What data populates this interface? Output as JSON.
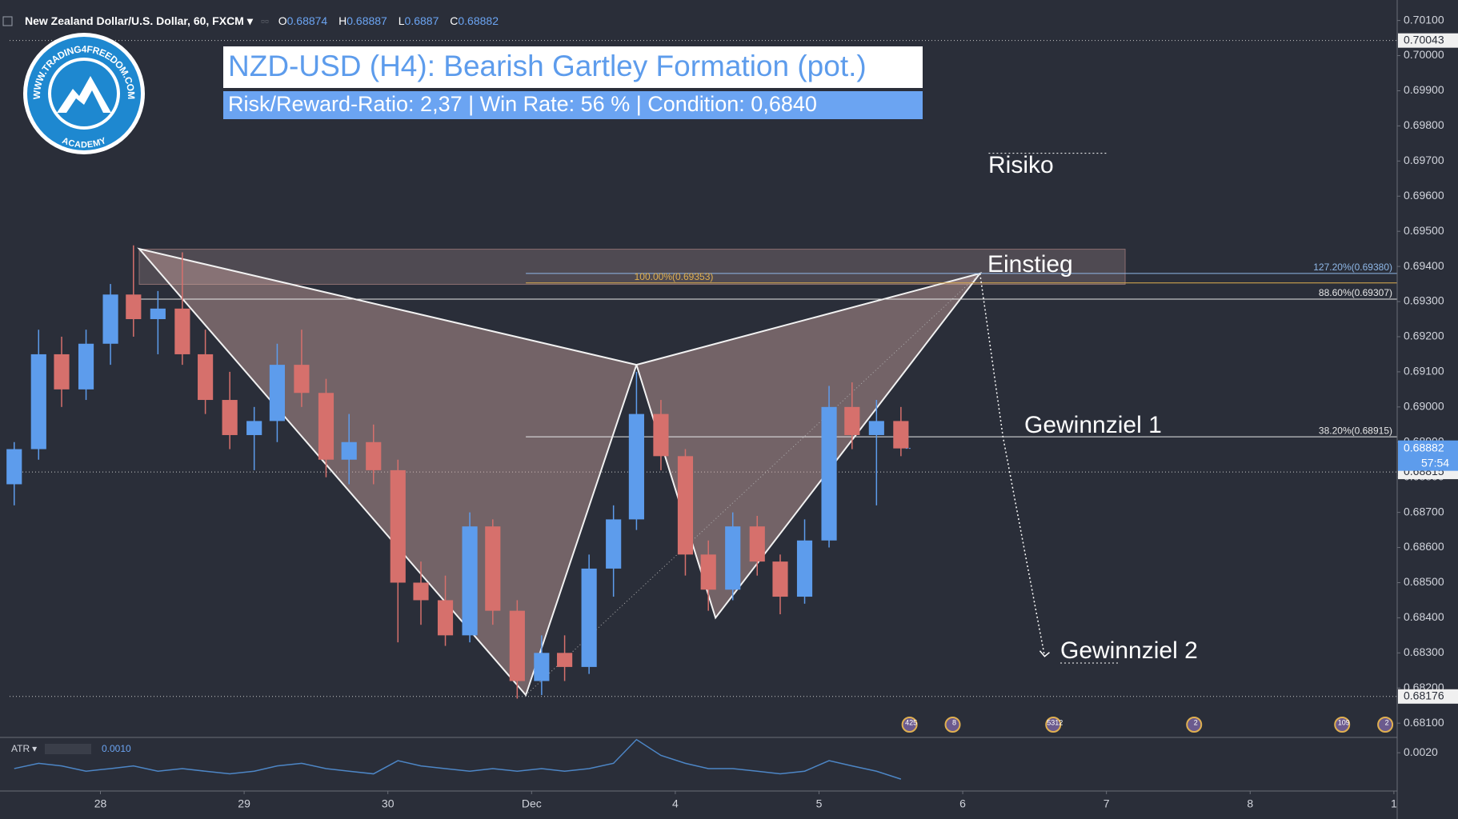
{
  "header": {
    "symbol": "New Zealand Dollar/U.S. Dollar, 60, FXCM",
    "ohlc": [
      {
        "key": "O",
        "value": 0.68874
      },
      {
        "key": "H",
        "value": 0.68887
      },
      {
        "key": "L",
        "value": 0.6887
      },
      {
        "key": "C",
        "value": 0.68882
      }
    ]
  },
  "banner": {
    "title": "NZD-USD (H4): Bearish Gartley Formation (pot.)",
    "subtitle": "Risk/Reward-Ratio: 2,37 | Win Rate: 56 % | Condition: 0,6840"
  },
  "logo": {
    "url": "WWW.TRADING4FREEDOM.COM",
    "tag": "ACADEMY"
  },
  "annotations": {
    "risk": "Risiko",
    "entry": "Einstieg",
    "target1": "Gewinnziel 1",
    "target2": "Gewinnziel 2"
  },
  "chart_data": [
    {
      "type": "candlestick",
      "up_color": "#5d9cec",
      "down_color": "#d6706c",
      "x": [
        -0.6,
        -0.43,
        -0.27,
        -0.1,
        0.07,
        0.23,
        0.4,
        0.57,
        0.73,
        0.9,
        1.07,
        1.23,
        1.4,
        1.57,
        1.73,
        1.9,
        2.07,
        2.23,
        2.4,
        2.57,
        2.73,
        2.9,
        3.07,
        3.23,
        3.4,
        3.57,
        3.73,
        3.9,
        4.07,
        4.23,
        4.4,
        4.57,
        4.73,
        4.9,
        5.07,
        5.23,
        5.4,
        5.57
      ],
      "open": [
        0.6878,
        0.6888,
        0.6915,
        0.6905,
        0.6918,
        0.6932,
        0.6925,
        0.6928,
        0.6915,
        0.6902,
        0.6892,
        0.6896,
        0.6912,
        0.6904,
        0.6885,
        0.689,
        0.6882,
        0.685,
        0.6845,
        0.6835,
        0.6866,
        0.6842,
        0.6822,
        0.683,
        0.6826,
        0.6854,
        0.6868,
        0.6898,
        0.6886,
        0.6858,
        0.6848,
        0.6866,
        0.6856,
        0.6846,
        0.6862,
        0.69,
        0.6892,
        0.6896
      ],
      "high": [
        0.689,
        0.6922,
        0.692,
        0.6922,
        0.6935,
        0.6946,
        0.6933,
        0.6944,
        0.6922,
        0.691,
        0.69,
        0.6918,
        0.6922,
        0.6908,
        0.6898,
        0.6895,
        0.6885,
        0.6856,
        0.6852,
        0.687,
        0.6868,
        0.6845,
        0.6835,
        0.6835,
        0.6858,
        0.6872,
        0.691,
        0.6902,
        0.6888,
        0.6862,
        0.687,
        0.6869,
        0.6858,
        0.6868,
        0.6906,
        0.6907,
        0.6902,
        0.69
      ],
      "low": [
        0.6872,
        0.6885,
        0.69,
        0.6902,
        0.6912,
        0.692,
        0.6915,
        0.6912,
        0.6898,
        0.6888,
        0.6882,
        0.689,
        0.69,
        0.688,
        0.6878,
        0.6878,
        0.6833,
        0.6838,
        0.6832,
        0.6833,
        0.6838,
        0.6817,
        0.6818,
        0.6822,
        0.6824,
        0.6846,
        0.6865,
        0.6882,
        0.6852,
        0.6842,
        0.6845,
        0.6852,
        0.6841,
        0.6844,
        0.686,
        0.6888,
        0.6872,
        0.6886
      ],
      "close": [
        0.6888,
        0.6915,
        0.6905,
        0.6918,
        0.6932,
        0.6925,
        0.6928,
        0.6915,
        0.6902,
        0.6892,
        0.6896,
        0.6912,
        0.6904,
        0.6885,
        0.689,
        0.6882,
        0.685,
        0.6845,
        0.6835,
        0.6866,
        0.6842,
        0.6822,
        0.683,
        0.6826,
        0.6854,
        0.6868,
        0.6898,
        0.6886,
        0.6858,
        0.6848,
        0.6866,
        0.6856,
        0.6846,
        0.6862,
        0.69,
        0.6892,
        0.6896,
        0.68882
      ],
      "countdown": "57:54",
      "xlim": [
        -0.632,
        9.023
      ],
      "xticks": [
        {
          "value": 0,
          "label": "28"
        },
        {
          "value": 1,
          "label": "29"
        },
        {
          "value": 2,
          "label": "30"
        },
        {
          "value": 3,
          "label": "Dec"
        },
        {
          "value": 4,
          "label": "4"
        },
        {
          "value": 5,
          "label": "5"
        },
        {
          "value": 6,
          "label": "6"
        },
        {
          "value": 7,
          "label": "7"
        },
        {
          "value": 8,
          "label": "8"
        },
        {
          "value": 9,
          "label": "1"
        }
      ],
      "ylim": [
        0.68064,
        0.70131
      ],
      "yticks": [
        {
          "value": 0.681,
          "label": "0.68100"
        },
        {
          "value": 0.682,
          "label": "0.68200"
        },
        {
          "value": 0.683,
          "label": "0.68300"
        },
        {
          "value": 0.684,
          "label": "0.68400"
        },
        {
          "value": 0.685,
          "label": "0.68500"
        },
        {
          "value": 0.686,
          "label": "0.68600"
        },
        {
          "value": 0.687,
          "label": "0.68700"
        },
        {
          "value": 0.688,
          "label": "0.68800"
        },
        {
          "value": 0.689,
          "label": "0.68900"
        },
        {
          "value": 0.69,
          "label": "0.69000"
        },
        {
          "value": 0.691,
          "label": "0.69100"
        },
        {
          "value": 0.692,
          "label": "0.69200"
        },
        {
          "value": 0.693,
          "label": "0.69300"
        },
        {
          "value": 0.694,
          "label": "0.69400"
        },
        {
          "value": 0.695,
          "label": "0.69500"
        },
        {
          "value": 0.696,
          "label": "0.69600"
        },
        {
          "value": 0.697,
          "label": "0.69700"
        },
        {
          "value": 0.698,
          "label": "0.69800"
        },
        {
          "value": 0.699,
          "label": "0.69900"
        },
        {
          "value": 0.7,
          "label": "0.70000"
        },
        {
          "value": 0.701,
          "label": "0.70100"
        }
      ],
      "grid": false,
      "price_lines": [
        {
          "value": 0.70043,
          "label": "0.70043"
        },
        {
          "value": 0.68815,
          "label": "0.68815"
        },
        {
          "value": 0.68176,
          "label": "0.68176"
        }
      ],
      "zone": {
        "x": [
          0.27,
          7.13
        ],
        "y": [
          0.69349,
          0.69449
        ]
      },
      "risk_line": {
        "x": [
          6.18,
          7.0
        ],
        "y": 0.69722
      },
      "pattern": {
        "x": [
          0.27,
          2.96,
          3.73,
          4.28,
          6.12
        ],
        "y": [
          0.6945,
          0.6818,
          0.6912,
          0.684,
          0.6938
        ]
      },
      "projection": {
        "x": [
          6.12,
          6.28,
          6.57
        ],
        "y": [
          0.6938,
          0.68915,
          0.6829
        ]
      },
      "fib_levels": [
        {
          "value": 0.6938,
          "label": "127.20%(0.69380)",
          "from": 2.96,
          "color": "#8fb8e8"
        },
        {
          "value": 0.69353,
          "label": "100.00%(0.69353)",
          "from": 2.96,
          "color": "#e0b050"
        },
        {
          "value": 0.69307,
          "label": "88.60%(0.69307)",
          "from": 0.27,
          "color": "#e8e8e8"
        },
        {
          "value": 0.68915,
          "label": "38.20%(0.68915)",
          "from": 2.96,
          "color": "#e8e8e8"
        }
      ],
      "events": [
        {
          "x": 5.63,
          "label": "425"
        },
        {
          "x": 5.93,
          "label": "8"
        },
        {
          "x": 6.63,
          "label": "5312"
        },
        {
          "x": 7.61,
          "label": "2"
        },
        {
          "x": 8.64,
          "label": "109"
        },
        {
          "x": 8.94,
          "label": "2"
        }
      ]
    },
    {
      "type": "line",
      "title": "ATR",
      "legend_value": "0.0010",
      "color": "#4d86c6",
      "values": [
        0.0014,
        0.0016,
        0.0015,
        0.0013,
        0.0014,
        0.0015,
        0.0013,
        0.0014,
        0.0013,
        0.0012,
        0.0013,
        0.0015,
        0.0016,
        0.0014,
        0.0013,
        0.0012,
        0.0017,
        0.0015,
        0.0014,
        0.0013,
        0.0014,
        0.0013,
        0.0014,
        0.0013,
        0.0014,
        0.0016,
        0.0025,
        0.0019,
        0.0016,
        0.0014,
        0.0014,
        0.0013,
        0.0012,
        0.0013,
        0.0017,
        0.0015,
        0.0013,
        0.001
      ],
      "ylim": [
        0.00058,
        0.00252
      ],
      "yticks": [
        {
          "value": 0.002,
          "label": "0.0020"
        }
      ]
    }
  ]
}
